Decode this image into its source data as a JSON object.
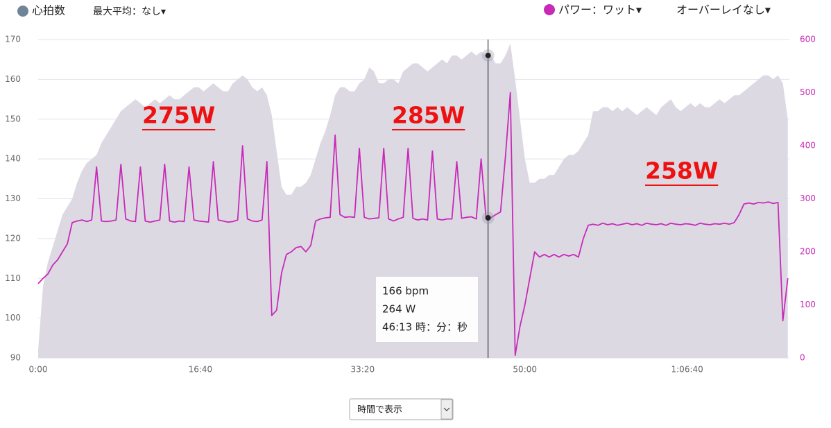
{
  "header": {
    "hr_menu": "心拍数",
    "avg_menu": "最大平均：なし▾",
    "power_menu": "パワー：ワット▾",
    "overlay_menu": "オーバーレイなし▾"
  },
  "footer": {
    "select": "時間で表示"
  },
  "chart_data": {
    "type": "line",
    "xlim": [
      0,
      4630
    ],
    "xticks": [
      {
        "value": 0,
        "label": "0:00"
      },
      {
        "value": 1000,
        "label": "16:40"
      },
      {
        "value": 2000,
        "label": "33:20"
      },
      {
        "value": 3000,
        "label": "50:00"
      },
      {
        "value": 4000,
        "label": "1:06:40"
      }
    ],
    "ylim": [
      90,
      170
    ],
    "yticks": [
      90,
      100,
      110,
      120,
      130,
      140,
      150,
      160,
      170
    ],
    "y2lim": [
      0,
      600
    ],
    "y2ticks": [
      0,
      100,
      200,
      300,
      400,
      500,
      600
    ],
    "grid": true,
    "x": [
      0,
      30,
      60,
      90,
      120,
      150,
      180,
      210,
      240,
      270,
      300,
      330,
      360,
      390,
      420,
      450,
      480,
      510,
      540,
      570,
      600,
      630,
      660,
      690,
      720,
      750,
      780,
      810,
      840,
      870,
      900,
      930,
      960,
      990,
      1020,
      1050,
      1080,
      1110,
      1140,
      1170,
      1200,
      1230,
      1260,
      1290,
      1320,
      1350,
      1380,
      1410,
      1440,
      1470,
      1500,
      1530,
      1560,
      1590,
      1620,
      1650,
      1680,
      1710,
      1740,
      1770,
      1800,
      1830,
      1860,
      1890,
      1920,
      1950,
      1980,
      2010,
      2040,
      2070,
      2100,
      2130,
      2160,
      2190,
      2220,
      2250,
      2280,
      2310,
      2340,
      2370,
      2400,
      2430,
      2460,
      2490,
      2520,
      2550,
      2580,
      2610,
      2640,
      2670,
      2700,
      2730,
      2760,
      2790,
      2820,
      2850,
      2880,
      2910,
      2940,
      2970,
      3000,
      3030,
      3060,
      3090,
      3120,
      3150,
      3180,
      3210,
      3240,
      3270,
      3300,
      3330,
      3360,
      3390,
      3420,
      3450,
      3480,
      3510,
      3540,
      3570,
      3600,
      3630,
      3660,
      3690,
      3720,
      3750,
      3780,
      3810,
      3840,
      3870,
      3900,
      3930,
      3960,
      3990,
      4020,
      4050,
      4080,
      4110,
      4140,
      4170,
      4200,
      4230,
      4260,
      4290,
      4320,
      4350,
      4380,
      4410,
      4440,
      4470,
      4500,
      4530,
      4560,
      4590,
      4620
    ],
    "series": [
      {
        "kind": "area",
        "color": "#dcd9e3",
        "values": [
          92,
          108,
          114,
          118,
          122,
          126,
          128,
          130,
          134,
          137,
          139,
          140,
          141,
          144,
          146,
          148,
          150,
          152,
          153,
          154,
          155,
          154,
          153,
          154,
          155,
          154,
          155,
          156,
          155,
          155,
          156,
          157,
          158,
          158,
          157,
          158,
          159,
          158,
          157,
          157,
          159,
          160,
          161,
          160,
          158,
          157,
          158,
          156,
          151,
          142,
          133,
          131,
          131,
          133,
          133,
          134,
          136,
          140,
          144,
          147,
          151,
          156,
          158,
          158,
          157,
          157,
          159,
          160,
          163,
          162,
          159,
          159,
          160,
          160,
          159,
          162,
          163,
          164,
          164,
          163,
          162,
          163,
          164,
          165,
          164,
          166,
          166,
          165,
          166,
          167,
          166,
          167,
          166,
          166,
          164,
          164,
          166,
          169,
          160,
          150,
          140,
          134,
          134,
          135,
          135,
          136,
          136,
          138,
          140,
          141,
          141,
          142,
          144,
          146,
          152,
          152,
          153,
          153,
          152,
          153,
          152,
          153,
          152,
          151,
          152,
          153,
          152,
          151,
          153,
          154,
          155,
          153,
          152,
          153,
          154,
          153,
          154,
          153,
          153,
          154,
          155,
          154,
          155,
          156,
          156,
          157,
          158,
          159,
          160,
          161,
          161,
          160,
          161,
          159,
          150
        ]
      },
      {
        "kind": "line",
        "axis": "y2",
        "color": "#c82ab8",
        "values": [
          140,
          150,
          158,
          175,
          185,
          200,
          215,
          255,
          258,
          260,
          257,
          260,
          360,
          258,
          257,
          258,
          260,
          365,
          262,
          258,
          257,
          360,
          258,
          256,
          258,
          260,
          365,
          258,
          256,
          258,
          257,
          360,
          260,
          258,
          257,
          256,
          370,
          260,
          258,
          256,
          257,
          260,
          400,
          262,
          258,
          257,
          260,
          370,
          80,
          90,
          160,
          195,
          200,
          208,
          210,
          200,
          212,
          258,
          262,
          264,
          265,
          420,
          270,
          265,
          266,
          265,
          395,
          265,
          262,
          263,
          264,
          395,
          262,
          258,
          262,
          265,
          395,
          263,
          260,
          262,
          260,
          390,
          262,
          260,
          262,
          262,
          370,
          263,
          265,
          266,
          262,
          375,
          265,
          264,
          270,
          275,
          380,
          500,
          5,
          60,
          100,
          150,
          200,
          190,
          195,
          190,
          195,
          190,
          195,
          192,
          195,
          190,
          225,
          250,
          252,
          250,
          254,
          251,
          253,
          250,
          252,
          254,
          251,
          253,
          250,
          254,
          252,
          251,
          253,
          250,
          254,
          252,
          251,
          253,
          252,
          250,
          254,
          252,
          251,
          253,
          252,
          254,
          252,
          255,
          270,
          290,
          292,
          290,
          293,
          292,
          294,
          291,
          293,
          70,
          150
        ]
      }
    ],
    "annotations": [
      "275W",
      "285W",
      "258W"
    ],
    "tooltip": {
      "x": 2773,
      "hr": 166,
      "power": 264,
      "lines": [
        "166 bpm",
        "264 W",
        "46:13 時：分：秒"
      ]
    }
  }
}
